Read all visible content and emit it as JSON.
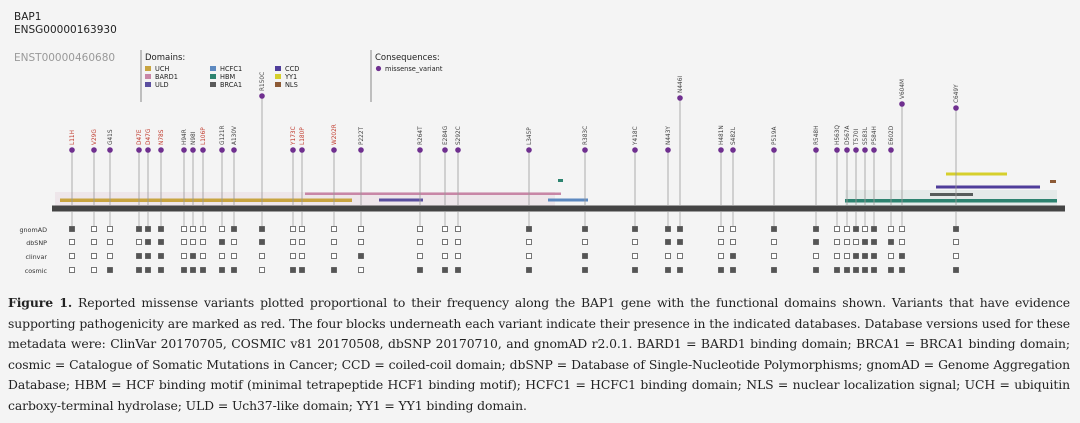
{
  "gene": {
    "name": "BAP1",
    "ensg": "ENSG00000163930",
    "enst": "ENST00000460680"
  },
  "domains_title": "Domains:",
  "domains": [
    {
      "name": "UCH",
      "color": "#c8a441"
    },
    {
      "name": "BARD1",
      "color": "#c886a6"
    },
    {
      "name": "ULD",
      "color": "#5b4f9f"
    },
    {
      "name": "HCFC1",
      "color": "#5d89c0"
    },
    {
      "name": "HBM",
      "color": "#2d8470"
    },
    {
      "name": "BRCA1",
      "color": "#5a5a5a"
    },
    {
      "name": "CCD",
      "color": "#4f3d9a"
    },
    {
      "name": "YY1",
      "color": "#d6cf2c"
    },
    {
      "name": "NLS",
      "color": "#8d5a35"
    }
  ],
  "consequences_title": "Consequences:",
  "consequences": [
    {
      "name": "missense_variant",
      "color": "#6f2f8f"
    }
  ],
  "variants": [
    {
      "label": "L11H",
      "pathogenic": true,
      "db": [
        1,
        0,
        0,
        0
      ]
    },
    {
      "label": "V29G",
      "pathogenic": true,
      "db": [
        0,
        0,
        0,
        0
      ]
    },
    {
      "label": "G41S",
      "pathogenic": false,
      "db": [
        0,
        0,
        0,
        1
      ]
    },
    {
      "label": "D47E",
      "pathogenic": true,
      "db": [
        1,
        0,
        1,
        1
      ]
    },
    {
      "label": "D47G",
      "pathogenic": true,
      "db": [
        1,
        1,
        1,
        1
      ]
    },
    {
      "label": "N78S",
      "pathogenic": true,
      "db": [
        1,
        1,
        1,
        1
      ]
    },
    {
      "label": "H94R",
      "pathogenic": false,
      "db": [
        0,
        0,
        0,
        1
      ]
    },
    {
      "label": "N98I",
      "pathogenic": false,
      "db": [
        0,
        0,
        1,
        1
      ]
    },
    {
      "label": "L106P",
      "pathogenic": true,
      "db": [
        0,
        0,
        0,
        1
      ]
    },
    {
      "label": "G121R",
      "pathogenic": false,
      "db": [
        0,
        1,
        0,
        1
      ]
    },
    {
      "label": "A130V",
      "pathogenic": false,
      "db": [
        1,
        0,
        0,
        1
      ]
    },
    {
      "label": "R150C",
      "pathogenic": false,
      "db": [
        1,
        1,
        0,
        0
      ]
    },
    {
      "label": "Y173C",
      "pathogenic": true,
      "db": [
        0,
        0,
        0,
        1
      ]
    },
    {
      "label": "L180P",
      "pathogenic": true,
      "db": [
        0,
        0,
        0,
        1
      ]
    },
    {
      "label": "W202R",
      "pathogenic": true,
      "db": [
        0,
        0,
        0,
        1
      ]
    },
    {
      "label": "P222T",
      "pathogenic": false,
      "db": [
        0,
        0,
        1,
        0
      ]
    },
    {
      "label": "R264T",
      "pathogenic": false,
      "db": [
        0,
        0,
        0,
        1
      ]
    },
    {
      "label": "E284G",
      "pathogenic": false,
      "db": [
        0,
        0,
        0,
        1
      ]
    },
    {
      "label": "S292C",
      "pathogenic": false,
      "db": [
        0,
        0,
        0,
        1
      ]
    },
    {
      "label": "L345P",
      "pathogenic": false,
      "db": [
        1,
        0,
        0,
        1
      ]
    },
    {
      "label": "R383C",
      "pathogenic": false,
      "db": [
        1,
        0,
        1,
        1
      ]
    },
    {
      "label": "Y418C",
      "pathogenic": false,
      "db": [
        1,
        0,
        0,
        1
      ]
    },
    {
      "label": "N443Y",
      "pathogenic": false,
      "db": [
        1,
        1,
        0,
        1
      ]
    },
    {
      "label": "N446I",
      "pathogenic": false,
      "db": [
        1,
        1,
        0,
        1
      ]
    },
    {
      "label": "H481N",
      "pathogenic": false,
      "db": [
        0,
        0,
        0,
        1
      ]
    },
    {
      "label": "S482L",
      "pathogenic": false,
      "db": [
        0,
        0,
        1,
        1
      ]
    },
    {
      "label": "P519A",
      "pathogenic": false,
      "db": [
        1,
        0,
        0,
        1
      ]
    },
    {
      "label": "R548H",
      "pathogenic": false,
      "db": [
        1,
        1,
        0,
        1
      ]
    },
    {
      "label": "H563Q",
      "pathogenic": false,
      "db": [
        0,
        0,
        0,
        1
      ]
    },
    {
      "label": "D567A",
      "pathogenic": false,
      "db": [
        0,
        0,
        0,
        1
      ]
    },
    {
      "label": "T570I",
      "pathogenic": false,
      "db": [
        1,
        0,
        1,
        1
      ]
    },
    {
      "label": "S583L",
      "pathogenic": false,
      "db": [
        0,
        1,
        1,
        1
      ]
    },
    {
      "label": "P584H",
      "pathogenic": false,
      "db": [
        1,
        1,
        1,
        1
      ]
    },
    {
      "label": "E602D",
      "pathogenic": false,
      "db": [
        0,
        1,
        0,
        1
      ]
    },
    {
      "label": "V604M",
      "pathogenic": false,
      "db": [
        0,
        0,
        1,
        1
      ]
    },
    {
      "label": "C649Y",
      "pathogenic": false,
      "db": [
        1,
        0,
        0,
        1
      ]
    }
  ],
  "db_labels": [
    "gnomAD",
    "dbSNP",
    "clinvar",
    "cosmic"
  ],
  "pathogenic_color": "#c0392b",
  "benign_color": "#444444",
  "caption": {
    "label": "Figure 1.",
    "text": "Reported missense variants plotted proportional to their frequency along the BAP1 gene with the functional domains shown. Variants that have evidence supporting pathogenicity are marked as red. The four blocks underneath each variant indicate their presence in the indicated databases. Database versions used for these metadata were: ClinVar 20170705, COSMIC v81 20170508, dbSNP 20170710, and gnomAD r2.0.1. BARD1 = BARD1 binding domain; BRCA1 = BRCA1 binding domain; cosmic = Catalogue of Somatic Mutations in Cancer; CCD = coiled-coil domain; dbSNP = Database of Single-Nucleotide Polymorphisms; gnomAD = Genome Aggregation Database; HBM = HCF binding motif (minimal tetrapeptide HCF1 binding motif); HCFC1 = HCFC1 binding domain; NLS = nuclear localization signal; UCH = ubiquitin carboxy-terminal hydrolase; ULD = Uch37-like domain; YY1 = YY1 binding domain."
  }
}
